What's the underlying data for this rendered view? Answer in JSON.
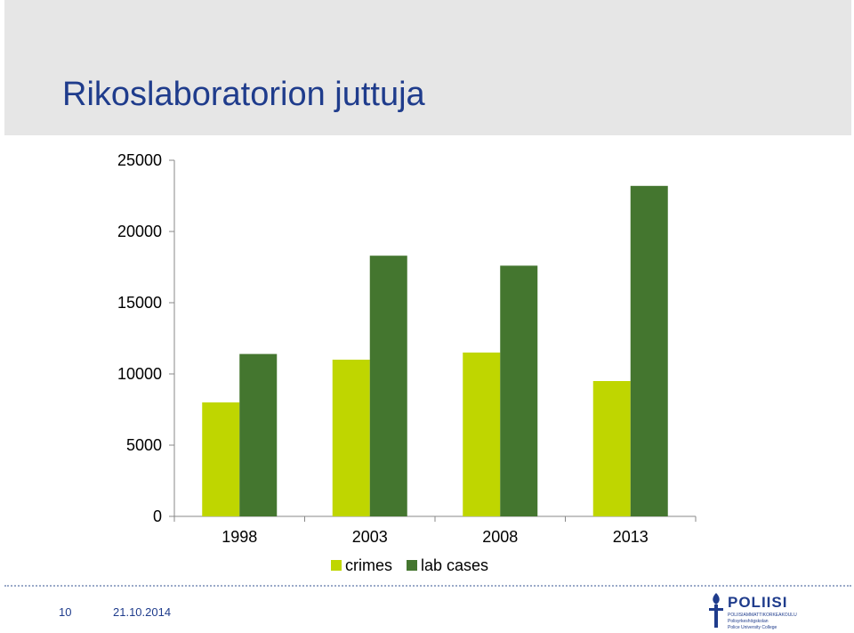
{
  "slide": {
    "title": "Rikoslaboratorion juttuja",
    "page_number": "10",
    "date": "21.10.2014"
  },
  "logo": {
    "name": "POLIISI",
    "lines": [
      "POLIISIAMMATTIKORKEAKOULU",
      "Polisyrkeshögskolan",
      "Police University College"
    ]
  },
  "colors": {
    "crimes": "#bfd600",
    "lab_cases": "#44762f",
    "title": "#1f3c8c"
  },
  "chart_data": {
    "type": "bar",
    "categories": [
      "1998",
      "2003",
      "2008",
      "2013"
    ],
    "series": [
      {
        "name": "crimes",
        "values": [
          8000,
          11000,
          11500,
          9500
        ]
      },
      {
        "name": "lab cases",
        "values": [
          11400,
          18300,
          17600,
          23200
        ]
      }
    ],
    "ylim": [
      0,
      25000
    ],
    "yticks": [
      0,
      5000,
      10000,
      15000,
      20000,
      25000
    ],
    "legend_position": "bottom",
    "grid": false
  }
}
